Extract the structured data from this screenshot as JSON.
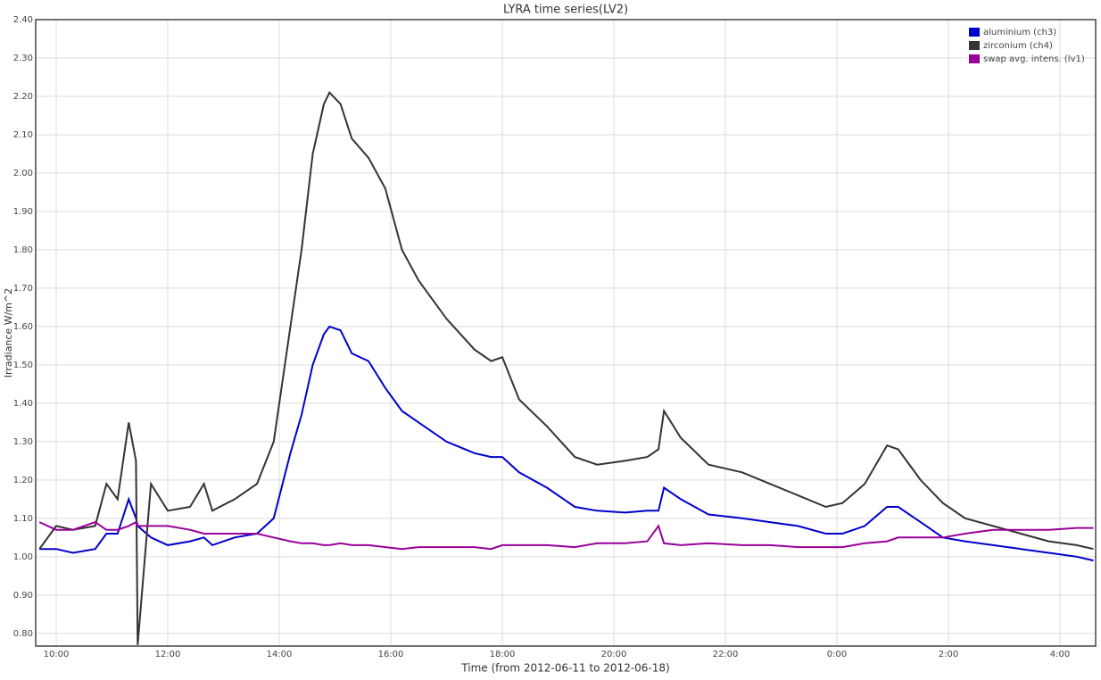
{
  "chart_data": {
    "type": "line",
    "title": "LYRA time series(LV2)",
    "x_label": "Time (from 2012-06-11 to 2012-06-18)",
    "y_label": "Irradiance W/m^2",
    "x": [
      9.7,
      10.0,
      10.3,
      10.7,
      10.9,
      11.1,
      11.3,
      11.43,
      11.46,
      11.7,
      12.0,
      12.4,
      12.65,
      12.8,
      13.2,
      13.6,
      13.9,
      14.2,
      14.4,
      14.6,
      14.8,
      14.9,
      15.1,
      15.3,
      15.6,
      15.9,
      16.2,
      16.5,
      17.0,
      17.5,
      17.8,
      18.0,
      18.3,
      18.8,
      19.3,
      19.7,
      20.2,
      20.6,
      20.8,
      20.9,
      21.2,
      21.7,
      22.3,
      22.8,
      23.3,
      23.8,
      24.1,
      24.5,
      24.9,
      25.1,
      25.5,
      25.9,
      26.3,
      26.8,
      27.3,
      27.8,
      28.3,
      28.6
    ],
    "series": [
      {
        "name": "aluminium (ch3)",
        "color": "#0000cc",
        "values": [
          1.02,
          1.02,
          1.01,
          1.02,
          1.06,
          1.06,
          1.15,
          1.1,
          1.08,
          1.05,
          1.03,
          1.04,
          1.05,
          1.03,
          1.05,
          1.06,
          1.1,
          1.27,
          1.37,
          1.5,
          1.58,
          1.6,
          1.59,
          1.53,
          1.51,
          1.44,
          1.38,
          1.35,
          1.3,
          1.27,
          1.26,
          1.26,
          1.22,
          1.18,
          1.13,
          1.12,
          1.115,
          1.12,
          1.12,
          1.18,
          1.15,
          1.11,
          1.1,
          1.09,
          1.08,
          1.06,
          1.06,
          1.08,
          1.13,
          1.13,
          1.09,
          1.05,
          1.04,
          1.03,
          1.02,
          1.01,
          1.0,
          0.99
        ]
      },
      {
        "name": "zirconium (ch4)",
        "color": "#333333",
        "values": [
          1.02,
          1.08,
          1.07,
          1.08,
          1.19,
          1.15,
          1.35,
          1.25,
          0.77,
          1.19,
          1.12,
          1.13,
          1.19,
          1.12,
          1.15,
          1.19,
          1.3,
          1.6,
          1.8,
          2.05,
          2.18,
          2.21,
          2.18,
          2.09,
          2.04,
          1.96,
          1.8,
          1.72,
          1.62,
          1.54,
          1.51,
          1.52,
          1.41,
          1.34,
          1.26,
          1.24,
          1.25,
          1.26,
          1.28,
          1.38,
          1.31,
          1.24,
          1.22,
          1.19,
          1.16,
          1.13,
          1.14,
          1.19,
          1.29,
          1.28,
          1.2,
          1.14,
          1.1,
          1.08,
          1.06,
          1.04,
          1.03,
          1.02
        ]
      },
      {
        "name": "swap avg. intens. (lv1)",
        "color": "#990099",
        "values": [
          1.09,
          1.07,
          1.07,
          1.09,
          1.07,
          1.07,
          1.08,
          1.09,
          1.08,
          1.08,
          1.08,
          1.07,
          1.06,
          1.06,
          1.06,
          1.06,
          1.05,
          1.04,
          1.035,
          1.035,
          1.03,
          1.03,
          1.035,
          1.03,
          1.03,
          1.025,
          1.02,
          1.025,
          1.025,
          1.025,
          1.02,
          1.03,
          1.03,
          1.03,
          1.025,
          1.035,
          1.035,
          1.04,
          1.08,
          1.035,
          1.03,
          1.035,
          1.03,
          1.03,
          1.025,
          1.025,
          1.025,
          1.035,
          1.04,
          1.05,
          1.05,
          1.05,
          1.06,
          1.07,
          1.07,
          1.07,
          1.075,
          1.075
        ]
      }
    ],
    "xlim": [
      9.632,
      28.64
    ],
    "xticks": [
      {
        "value": 10,
        "label": "10:00"
      },
      {
        "value": 12,
        "label": "12:00"
      },
      {
        "value": 14,
        "label": "14:00"
      },
      {
        "value": 16,
        "label": "16:00"
      },
      {
        "value": 18,
        "label": "18:00"
      },
      {
        "value": 20,
        "label": "20:00"
      },
      {
        "value": 22,
        "label": "22:00"
      },
      {
        "value": 24,
        "label": "0:00"
      },
      {
        "value": 26,
        "label": "2:00"
      },
      {
        "value": 28,
        "label": "4:00"
      }
    ],
    "ylim": [
      0.767,
      2.4
    ],
    "yticks": [
      {
        "value": 0.8,
        "label": "0.80"
      },
      {
        "value": 0.9,
        "label": "0.90"
      },
      {
        "value": 1.0,
        "label": "1.00"
      },
      {
        "value": 1.1,
        "label": "1.10"
      },
      {
        "value": 1.2,
        "label": "1.20"
      },
      {
        "value": 1.3,
        "label": "1.30"
      },
      {
        "value": 1.4,
        "label": "1.40"
      },
      {
        "value": 1.5,
        "label": "1.50"
      },
      {
        "value": 1.6,
        "label": "1.60"
      },
      {
        "value": 1.7,
        "label": "1.70"
      },
      {
        "value": 1.8,
        "label": "1.80"
      },
      {
        "value": 1.9,
        "label": "1.90"
      },
      {
        "value": 2.0,
        "label": "2.00"
      },
      {
        "value": 2.1,
        "label": "2.10"
      },
      {
        "value": 2.2,
        "label": "2.20"
      },
      {
        "value": 2.3,
        "label": "2.30"
      },
      {
        "value": 2.4,
        "label": "2.40"
      }
    ],
    "grid": true,
    "legend": "top-right"
  }
}
